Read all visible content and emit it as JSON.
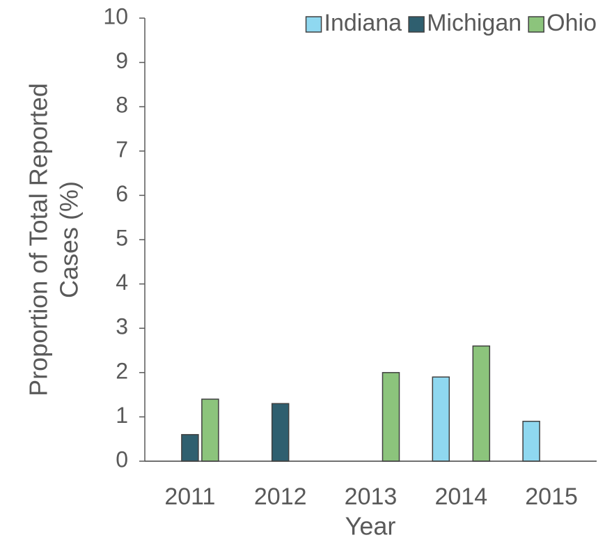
{
  "chart_data": {
    "type": "bar",
    "x_label": "Year",
    "y_label": [
      "Proportion of Total Reported",
      "Cases (%)"
    ],
    "categories": [
      "2011",
      "2012",
      "2013",
      "2014",
      "2015"
    ],
    "series": [
      {
        "name": "Indiana",
        "color": "#8fd8f0",
        "values": [
          null,
          null,
          null,
          1.9,
          0.9
        ]
      },
      {
        "name": "Michigan",
        "color": "#2f5f6f",
        "values": [
          0.6,
          1.3,
          null,
          null,
          null
        ]
      },
      {
        "name": "Ohio",
        "color": "#8cc47c",
        "values": [
          1.4,
          null,
          2.0,
          2.6,
          null
        ]
      }
    ],
    "ylim": [
      0,
      10
    ],
    "yticks": [
      0,
      1,
      2,
      3,
      4,
      5,
      6,
      7,
      8,
      9,
      10
    ],
    "grid": false,
    "legend": "top-right"
  }
}
